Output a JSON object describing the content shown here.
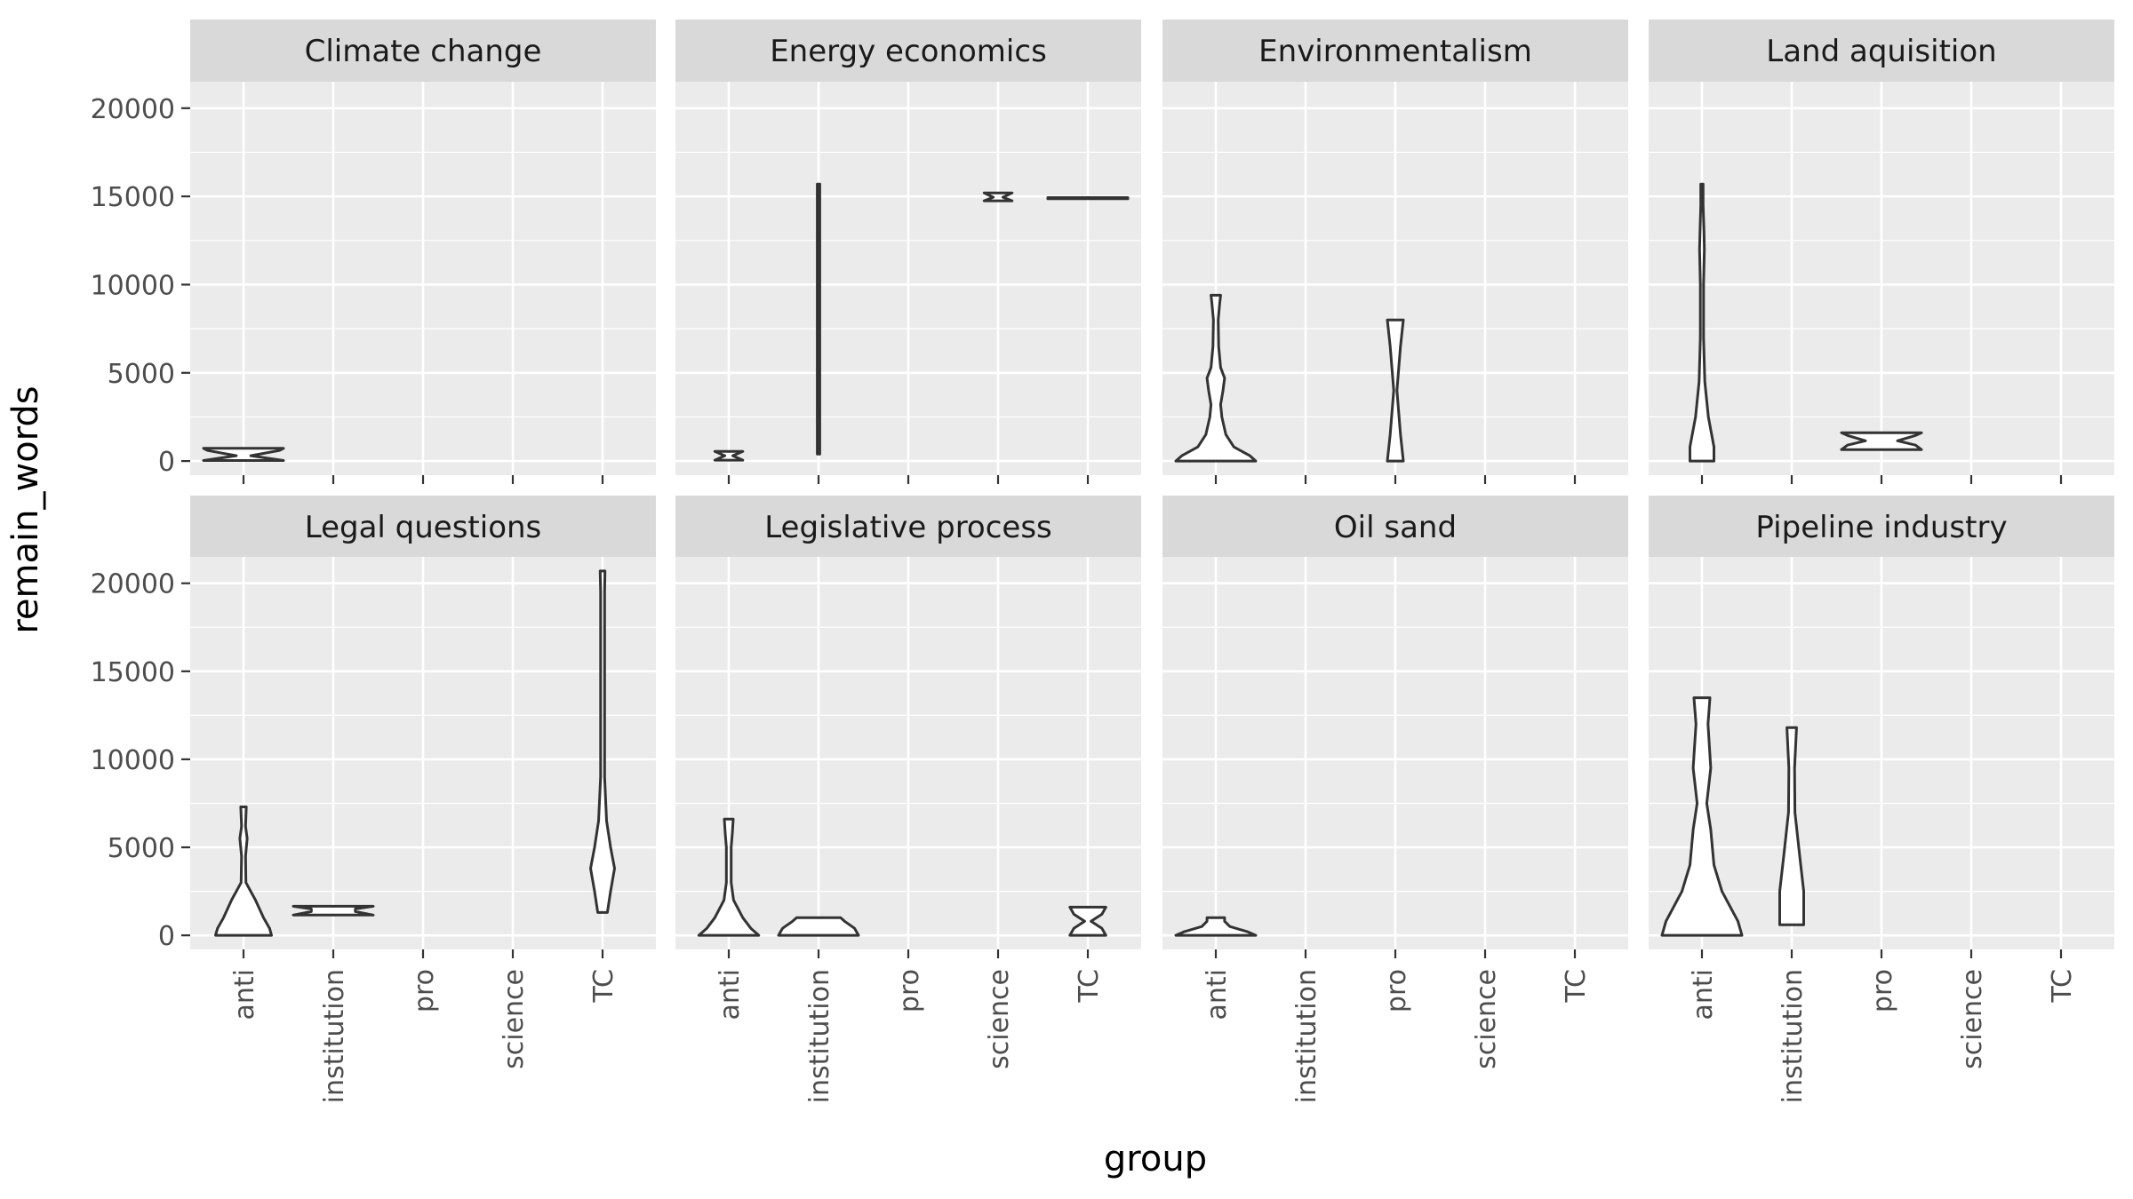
{
  "chart_data": {
    "type": "violin",
    "xlabel": "group",
    "ylabel": "remain_words",
    "groups": [
      "anti",
      "institution",
      "pro",
      "science",
      "TC"
    ],
    "y_ticks": [
      0,
      5000,
      10000,
      15000,
      20000
    ],
    "y_tick_labels": [
      "0",
      "5000",
      "10000",
      "15000",
      "20000"
    ],
    "ylim": [
      -800,
      21500
    ],
    "grid": true,
    "facets": [
      {
        "title": "Climate change",
        "violins": [
          {
            "group": "anti",
            "profile": [
              [
                30,
                1.0
              ],
              [
                300,
                0.18
              ],
              [
                600,
                0.9
              ],
              [
                720,
                1.0
              ]
            ]
          }
        ]
      },
      {
        "title": "Energy economics",
        "violins": [
          {
            "group": "anti",
            "profile": [
              [
                50,
                0.35
              ],
              [
                300,
                0.1
              ],
              [
                550,
                0.35
              ]
            ]
          },
          {
            "group": "institution",
            "profile": [
              [
                400,
                0.03
              ],
              [
                15700,
                0.03
              ]
            ]
          },
          {
            "group": "science",
            "profile": [
              [
                14750,
                0.35
              ],
              [
                14950,
                0.12
              ],
              [
                15200,
                0.35
              ]
            ]
          },
          {
            "group": "TC",
            "profile": [
              [
                14870,
                1.0
              ],
              [
                14930,
                1.0
              ]
            ]
          }
        ]
      },
      {
        "title": "Environmentalism",
        "violins": [
          {
            "group": "anti",
            "profile": [
              [
                0,
                1.0
              ],
              [
                300,
                0.85
              ],
              [
                800,
                0.45
              ],
              [
                1500,
                0.25
              ],
              [
                2500,
                0.15
              ],
              [
                3200,
                0.12
              ],
              [
                4000,
                0.18
              ],
              [
                4700,
                0.22
              ],
              [
                5300,
                0.12
              ],
              [
                6500,
                0.07
              ],
              [
                8000,
                0.06
              ],
              [
                9000,
                0.1
              ],
              [
                9400,
                0.12
              ]
            ]
          },
          {
            "group": "pro",
            "profile": [
              [
                0,
                0.2
              ],
              [
                1500,
                0.13
              ],
              [
                4000,
                0.04
              ],
              [
                6500,
                0.13
              ],
              [
                8000,
                0.2
              ]
            ]
          }
        ]
      },
      {
        "title": "Land aquisition",
        "violins": [
          {
            "group": "anti",
            "profile": [
              [
                0,
                0.3
              ],
              [
                800,
                0.3
              ],
              [
                2500,
                0.16
              ],
              [
                4500,
                0.07
              ],
              [
                7000,
                0.04
              ],
              [
                10000,
                0.04
              ],
              [
                12000,
                0.06
              ],
              [
                13000,
                0.05
              ],
              [
                14500,
                0.03
              ],
              [
                15700,
                0.03
              ]
            ]
          },
          {
            "group": "pro",
            "profile": [
              [
                650,
                1.0
              ],
              [
                900,
                0.85
              ],
              [
                1150,
                0.4
              ],
              [
                1450,
                0.85
              ],
              [
                1600,
                1.0
              ]
            ]
          }
        ]
      },
      {
        "title": "Legal questions",
        "violins": [
          {
            "group": "anti",
            "profile": [
              [
                0,
                0.7
              ],
              [
                400,
                0.65
              ],
              [
                1000,
                0.5
              ],
              [
                2000,
                0.3
              ],
              [
                3000,
                0.06
              ],
              [
                4500,
                0.05
              ],
              [
                5500,
                0.09
              ],
              [
                6200,
                0.05
              ],
              [
                7300,
                0.07
              ]
            ]
          },
          {
            "group": "institution",
            "profile": [
              [
                1150,
                1.0
              ],
              [
                1350,
                0.55
              ],
              [
                1500,
                0.55
              ],
              [
                1650,
                1.0
              ]
            ]
          },
          {
            "group": "TC",
            "profile": [
              [
                1300,
                0.12
              ],
              [
                2500,
                0.2
              ],
              [
                3800,
                0.3
              ],
              [
                5000,
                0.2
              ],
              [
                6500,
                0.1
              ],
              [
                9000,
                0.05
              ],
              [
                15000,
                0.05
              ],
              [
                19500,
                0.05
              ],
              [
                20700,
                0.06
              ]
            ]
          }
        ]
      },
      {
        "title": "Legislative process",
        "violins": [
          {
            "group": "anti",
            "profile": [
              [
                0,
                0.75
              ],
              [
                400,
                0.55
              ],
              [
                1000,
                0.35
              ],
              [
                2000,
                0.12
              ],
              [
                3000,
                0.06
              ],
              [
                5000,
                0.06
              ],
              [
                5800,
                0.09
              ],
              [
                6600,
                0.11
              ]
            ]
          },
          {
            "group": "institution",
            "profile": [
              [
                0,
                1.0
              ],
              [
                400,
                0.9
              ],
              [
                800,
                0.65
              ],
              [
                1000,
                0.55
              ]
            ]
          },
          {
            "group": "TC",
            "profile": [
              [
                0,
                0.45
              ],
              [
                400,
                0.35
              ],
              [
                800,
                0.08
              ],
              [
                1200,
                0.35
              ],
              [
                1600,
                0.45
              ]
            ]
          }
        ]
      },
      {
        "title": "Oil sand",
        "violins": [
          {
            "group": "anti",
            "profile": [
              [
                0,
                1.0
              ],
              [
                200,
                0.8
              ],
              [
                500,
                0.35
              ],
              [
                800,
                0.22
              ],
              [
                1000,
                0.22
              ]
            ]
          }
        ]
      },
      {
        "title": "Pipeline industry",
        "violins": [
          {
            "group": "anti",
            "profile": [
              [
                0,
                1.0
              ],
              [
                800,
                0.9
              ],
              [
                2500,
                0.5
              ],
              [
                4000,
                0.3
              ],
              [
                6000,
                0.22
              ],
              [
                7500,
                0.12
              ],
              [
                9500,
                0.22
              ],
              [
                12000,
                0.15
              ],
              [
                13500,
                0.2
              ]
            ]
          },
          {
            "group": "institution",
            "profile": [
              [
                600,
                0.3
              ],
              [
                2500,
                0.3
              ],
              [
                4500,
                0.2
              ],
              [
                7000,
                0.08
              ],
              [
                9500,
                0.07
              ],
              [
                11800,
                0.12
              ]
            ]
          }
        ]
      }
    ]
  }
}
